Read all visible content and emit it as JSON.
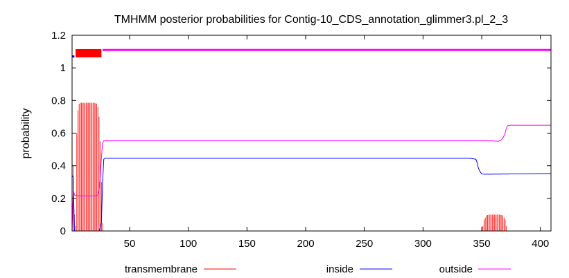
{
  "chart_data": {
    "type": "line",
    "title": "TMHMM posterior probabilities for Contig-10_CDS_annotation_glimmer3.pl_2_3",
    "xlabel": "",
    "ylabel": "probability",
    "xlim": [
      1,
      409
    ],
    "ylim": [
      0,
      1.2
    ],
    "x_ticks": [
      "50",
      "100",
      "150",
      "200",
      "250",
      "300",
      "350",
      "400"
    ],
    "y_ticks": [
      "0",
      "0.2",
      "0.4",
      "0.6",
      "0.8",
      "1",
      "1.2"
    ],
    "grid": false,
    "legend_position": "bottom",
    "topology": [
      {
        "type": "inside",
        "start": 1,
        "end": 3,
        "y": 1.07,
        "color": "#0000ff"
      },
      {
        "type": "transmembrane",
        "start": 4,
        "end": 26,
        "y": 1.09,
        "color": "#ff0000"
      },
      {
        "type": "outside",
        "start": 27,
        "end": 409,
        "y": 1.11,
        "color": "#ff00ff"
      }
    ],
    "series": [
      {
        "name": "transmembrane",
        "color": "#ff0000",
        "style": "impulses",
        "points": [
          [
            1,
            0.66
          ],
          [
            2,
            0.4
          ],
          [
            3,
            0.1
          ],
          [
            4,
            0.03
          ],
          [
            5,
            0.6
          ],
          [
            6,
            0.74
          ],
          [
            7,
            0.78
          ],
          [
            8,
            0.786
          ],
          [
            10,
            0.786
          ],
          [
            20,
            0.786
          ],
          [
            22,
            0.78
          ],
          [
            23,
            0.76
          ],
          [
            24,
            0.7
          ],
          [
            25,
            0.55
          ],
          [
            26,
            0.3
          ],
          [
            27,
            0.05
          ],
          [
            28,
            0.0
          ],
          [
            350,
            0.0
          ],
          [
            351,
            0.03
          ],
          [
            352,
            0.07
          ],
          [
            354,
            0.095
          ],
          [
            356,
            0.1
          ],
          [
            366,
            0.1
          ],
          [
            368,
            0.095
          ],
          [
            370,
            0.07
          ],
          [
            371,
            0.03
          ],
          [
            372,
            0.0
          ],
          [
            409,
            0.0
          ]
        ]
      },
      {
        "name": "inside",
        "color": "#0000ff",
        "style": "line",
        "points": [
          [
            1,
            0.34
          ],
          [
            2,
            0.33
          ],
          [
            3,
            0.0
          ],
          [
            4,
            0.0
          ],
          [
            20,
            0.0
          ],
          [
            24,
            0.0
          ],
          [
            25,
            0.02
          ],
          [
            26,
            0.05
          ],
          [
            27,
            0.3
          ],
          [
            28,
            0.44
          ],
          [
            29,
            0.446
          ],
          [
            100,
            0.446
          ],
          [
            340,
            0.446
          ],
          [
            345,
            0.44
          ],
          [
            346,
            0.42
          ],
          [
            347,
            0.39
          ],
          [
            348,
            0.37
          ],
          [
            350,
            0.35
          ],
          [
            352,
            0.348
          ],
          [
            409,
            0.352
          ]
        ]
      },
      {
        "name": "outside",
        "color": "#ff00ff",
        "style": "line",
        "points": [
          [
            1,
            0.0
          ],
          [
            2,
            0.26
          ],
          [
            3,
            0.22
          ],
          [
            6,
            0.215
          ],
          [
            20,
            0.215
          ],
          [
            23,
            0.22
          ],
          [
            24,
            0.25
          ],
          [
            25,
            0.32
          ],
          [
            26,
            0.45
          ],
          [
            27,
            0.54
          ],
          [
            28,
            0.553
          ],
          [
            100,
            0.553
          ],
          [
            340,
            0.553
          ],
          [
            358,
            0.553
          ],
          [
            364,
            0.55
          ],
          [
            366,
            0.555
          ],
          [
            368,
            0.57
          ],
          [
            370,
            0.6
          ],
          [
            371,
            0.63
          ],
          [
            372,
            0.645
          ],
          [
            374,
            0.648
          ],
          [
            409,
            0.648
          ]
        ]
      }
    ]
  }
}
